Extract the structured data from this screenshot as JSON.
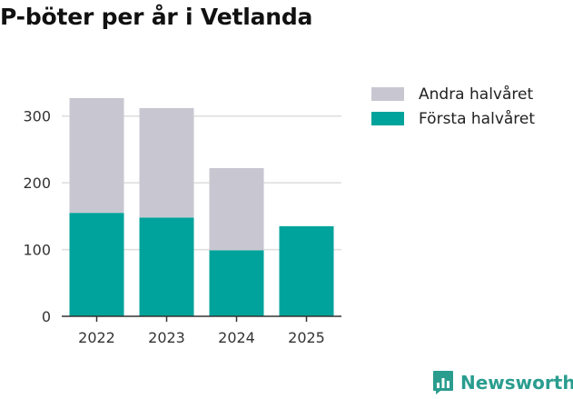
{
  "colors": {
    "andra": "#c8c7d1",
    "forsta": "#00a39b",
    "grid": "#dddddd",
    "axis": "#333333",
    "brand": "#2a9d8f"
  },
  "brand": {
    "name": "Newsworthy",
    "icon": "newsworthy-logo-icon"
  },
  "chart_data": {
    "type": "bar",
    "stacked": true,
    "title": "P-böter per år i Vetlanda",
    "xlabel": "",
    "ylabel": "",
    "categories": [
      "2022",
      "2023",
      "2024",
      "2025"
    ],
    "series": [
      {
        "name": "Första halvåret",
        "color": "#00a39b",
        "values": [
          155,
          148,
          99,
          135
        ]
      },
      {
        "name": "Andra halvåret",
        "color": "#c8c7d1",
        "values": [
          172,
          164,
          123,
          0
        ]
      }
    ],
    "ylim": [
      0,
      350
    ],
    "yticks": [
      "0",
      "100",
      "200",
      "300"
    ],
    "grid": true,
    "legend": {
      "position": "top-right",
      "items": [
        {
          "label": "Andra halvåret",
          "color": "#c8c7d1"
        },
        {
          "label": "Första halvåret",
          "color": "#00a39b"
        }
      ]
    }
  }
}
